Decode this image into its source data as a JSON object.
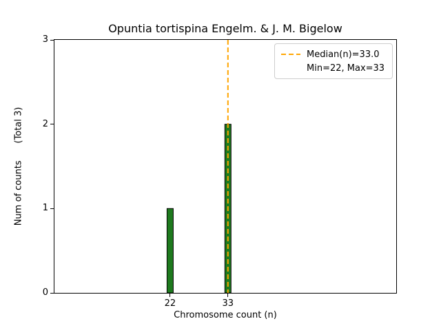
{
  "chart_data": {
    "type": "bar",
    "title": "Opuntia tortispina Engelm. & J. M. Bigelow",
    "xlabel": "Chromosome count (n)",
    "ylabel": "Num of counts      (Total 3)",
    "categories": [
      22,
      33
    ],
    "values": [
      1,
      2
    ],
    "xlim": [
      0,
      65
    ],
    "ylim": [
      0,
      3
    ],
    "xticks": [
      22,
      33
    ],
    "yticks": [
      0,
      1,
      2,
      3
    ],
    "grid": false,
    "bar_color": "#1e7a1e",
    "bar_edge_color": "#000000",
    "median_line": {
      "x": 33,
      "color": "#ffa500",
      "dash": "7 4",
      "width": 2
    },
    "legend": {
      "position": "upper right",
      "entries": [
        {
          "label": "Median(n)=33.0",
          "swatch": "dashed-line"
        },
        {
          "label": "Min=22, Max=33",
          "swatch": "none"
        }
      ]
    }
  }
}
